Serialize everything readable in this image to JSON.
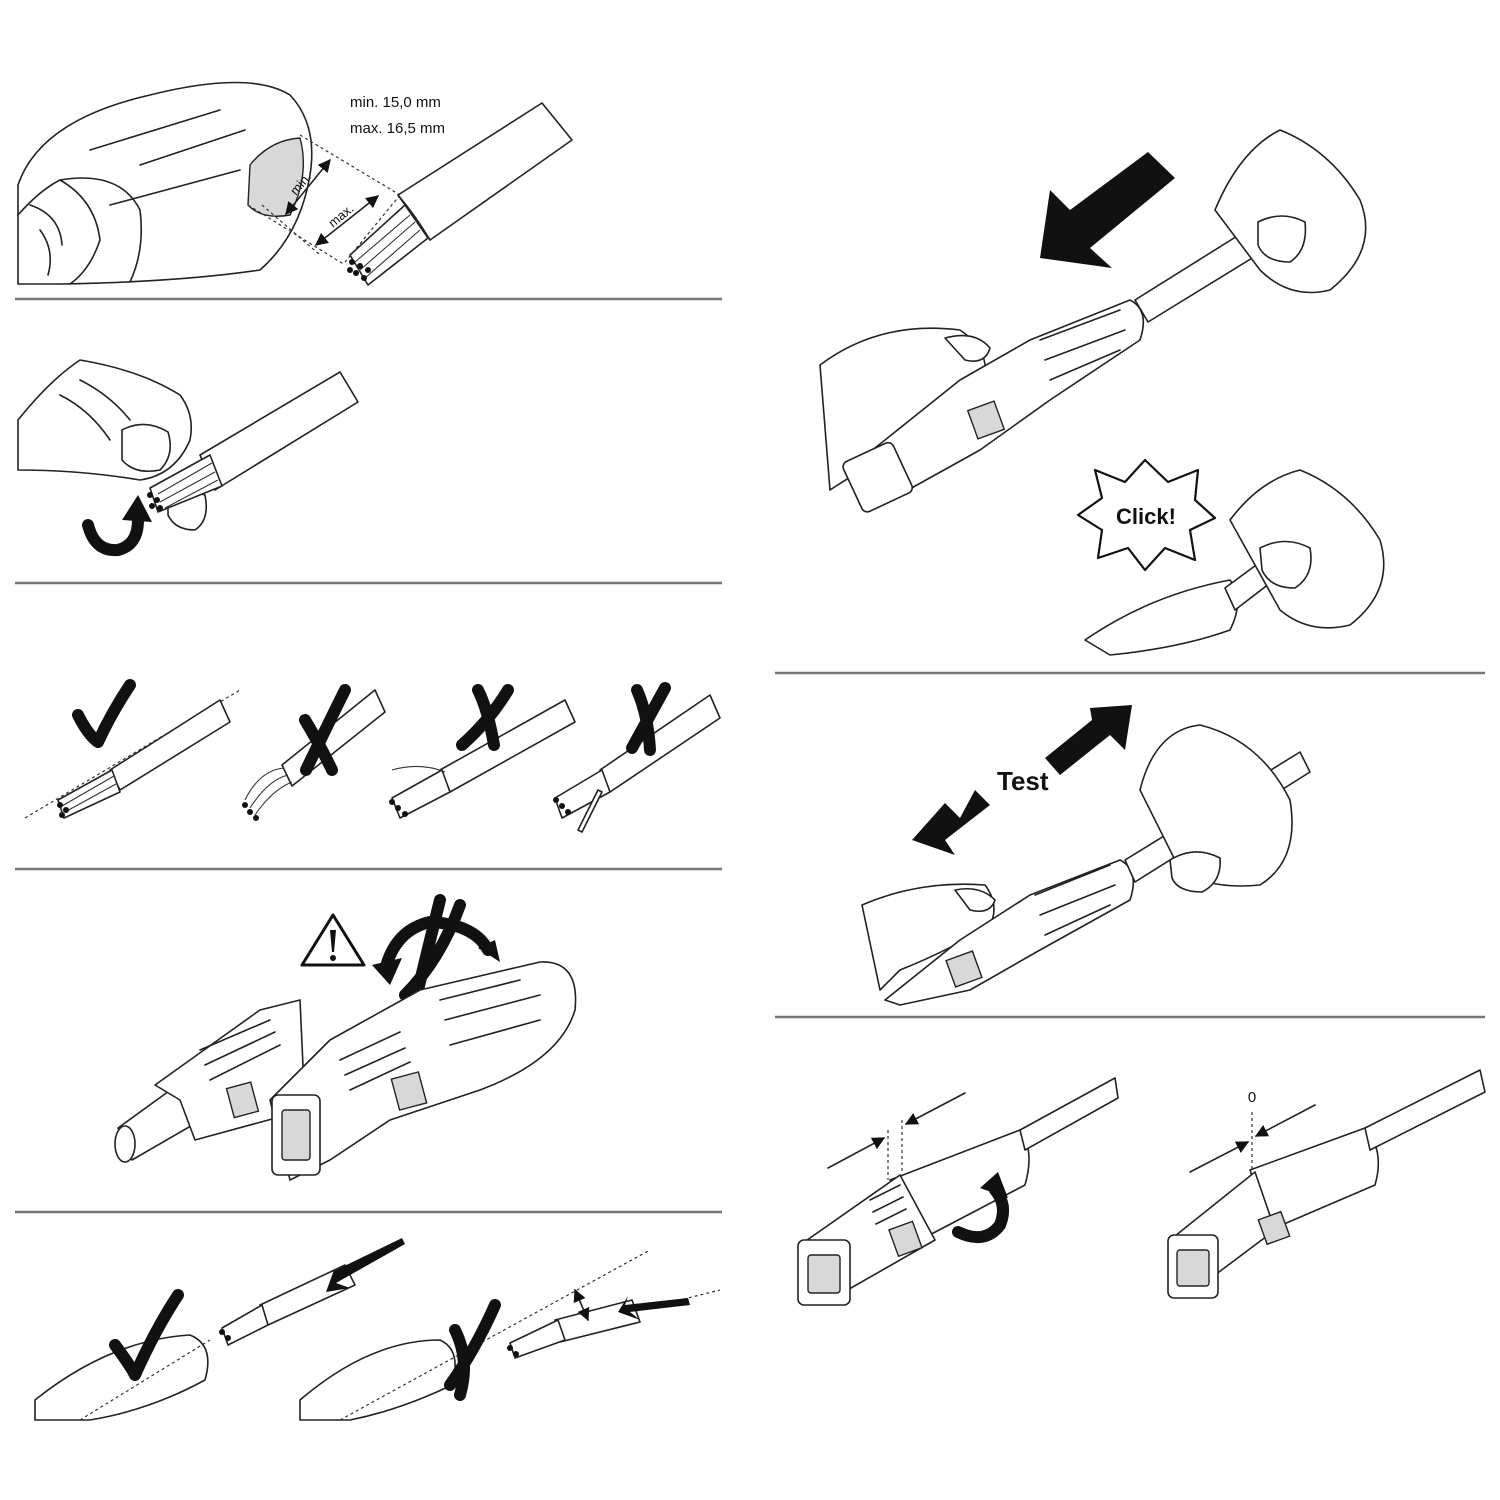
{
  "panel1": {
    "measure_min": "min. 15,0 mm",
    "measure_max": "max. 16,5 mm",
    "arrow_min_label": "min.",
    "arrow_max_label": "max."
  },
  "panel_click": {
    "label": "Click!"
  },
  "panel_test": {
    "label": "Test"
  },
  "panel_gap": {
    "gap_label": "0"
  },
  "icons": [
    "check-mark-icon",
    "cross-mark-icon",
    "warning-triangle-icon",
    "rotate-arrow-icon",
    "push-arrow-icon",
    "pull-arrow-icon",
    "click-burst-icon"
  ]
}
